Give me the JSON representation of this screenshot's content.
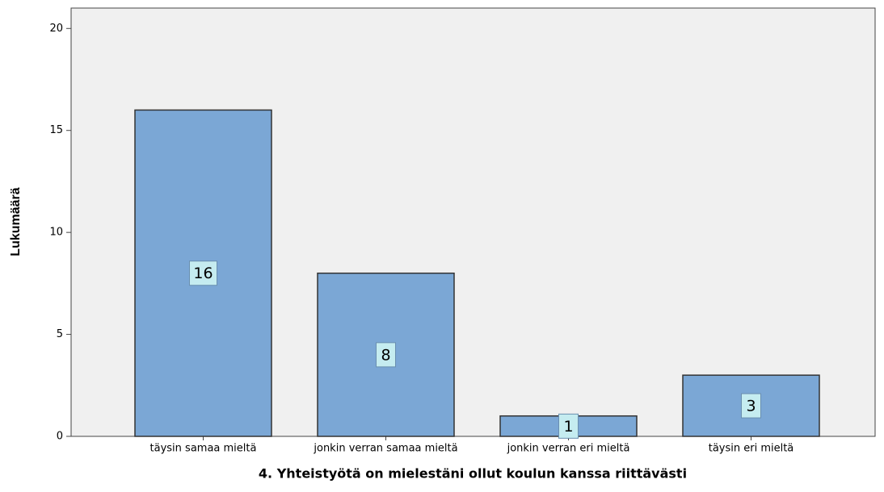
{
  "chart_data": {
    "type": "bar",
    "x_label": "4. Yhteistyötä on mielestäni ollut koulun kanssa riittävästi",
    "y_label": "Lukumäärä",
    "categories": [
      "täysin samaa mieltä",
      "jonkin verran samaa mieltä",
      "jonkin verran eri mieltä",
      "täysin eri mieltä"
    ],
    "values": [
      16,
      8,
      1,
      3
    ],
    "color": "#7ba7d5",
    "ylim": [
      0,
      21
    ],
    "yticks": [
      0,
      5,
      10,
      15,
      20
    ],
    "grid": false
  }
}
